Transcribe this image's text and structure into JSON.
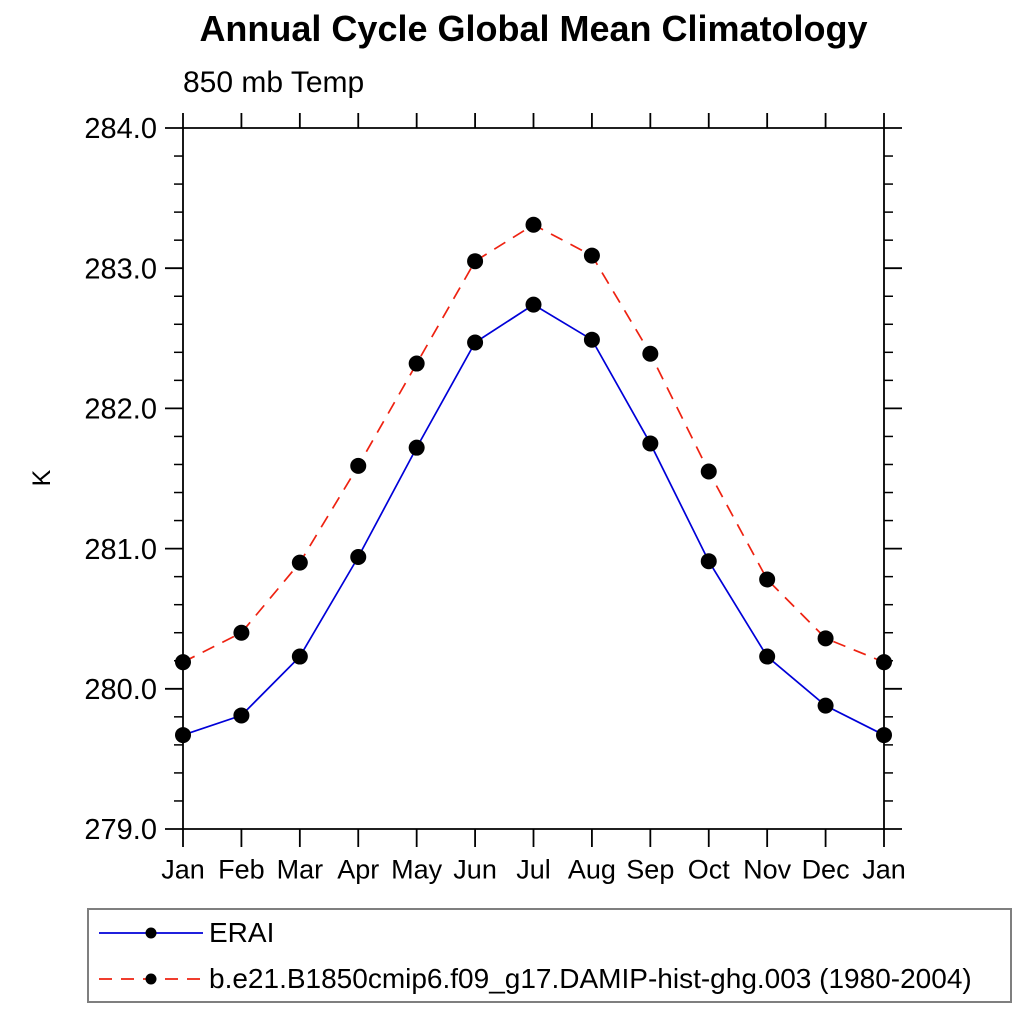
{
  "chart_data": {
    "type": "line",
    "title": "Annual Cycle Global Mean Climatology",
    "subtitle": "850 mb Temp",
    "ylabel": "K",
    "xlabel": "",
    "categories": [
      "Jan",
      "Feb",
      "Mar",
      "Apr",
      "May",
      "Jun",
      "Jul",
      "Aug",
      "Sep",
      "Oct",
      "Nov",
      "Dec",
      "Jan"
    ],
    "ylim": [
      279.0,
      284.0
    ],
    "ytick_major": 1.0,
    "ytick_minor": 0.2,
    "ytick_labels": [
      "279.0",
      "280.0",
      "281.0",
      "282.0",
      "283.0",
      "284.0"
    ],
    "grid": "off",
    "legend_position": "bottom-left",
    "axis_color": "#000000",
    "marker_color": "#000000",
    "series": [
      {
        "name": "ERAI",
        "color": "#0000d8",
        "dash": "none",
        "marker": "filled-circle",
        "values": [
          279.67,
          279.81,
          280.23,
          280.94,
          281.72,
          282.47,
          282.74,
          282.49,
          281.75,
          280.91,
          280.23,
          279.88,
          279.67
        ]
      },
      {
        "name": "b.e21.B1850cmip6.f09_g17.DAMIP-hist-ghg.003 (1980-2004)",
        "color": "#ee2211",
        "dash": "13 9",
        "marker": "filled-circle",
        "values": [
          280.19,
          280.4,
          280.9,
          281.59,
          282.32,
          283.05,
          283.31,
          283.09,
          282.39,
          281.55,
          280.78,
          280.36,
          280.19
        ]
      }
    ]
  }
}
